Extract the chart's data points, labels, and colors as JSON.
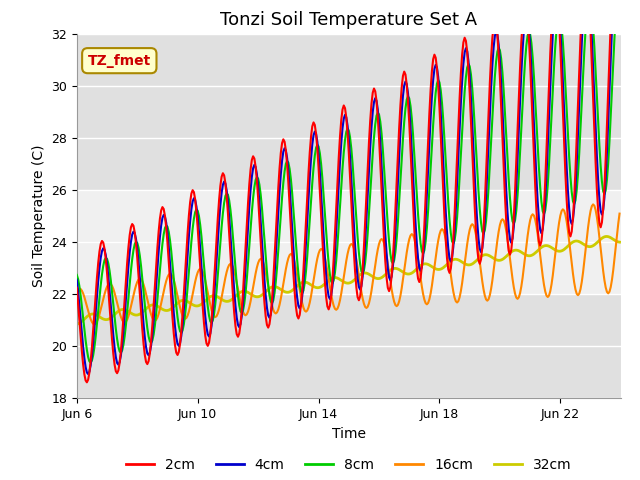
{
  "title": "Tonzi Soil Temperature Set A",
  "xlabel": "Time",
  "ylabel": "Soil Temperature (C)",
  "ylim": [
    18,
    32
  ],
  "legend_labels": [
    "2cm",
    "4cm",
    "8cm",
    "16cm",
    "32cm"
  ],
  "line_colors": [
    "#ff0000",
    "#0000cc",
    "#00cc00",
    "#ff8800",
    "#cccc00"
  ],
  "line_widths": [
    1.5,
    1.5,
    1.5,
    1.5,
    2.0
  ],
  "background_color": "#ffffff",
  "plot_bg_color": "#e0e0e0",
  "shaded_band": [
    22.0,
    26.0
  ],
  "annotation_text": "TZ_fmet",
  "annotation_box_color": "#ffffcc",
  "annotation_box_edge": "#aa8800",
  "title_fontsize": 13,
  "axis_label_fontsize": 10,
  "tick_fontsize": 9,
  "legend_fontsize": 10
}
